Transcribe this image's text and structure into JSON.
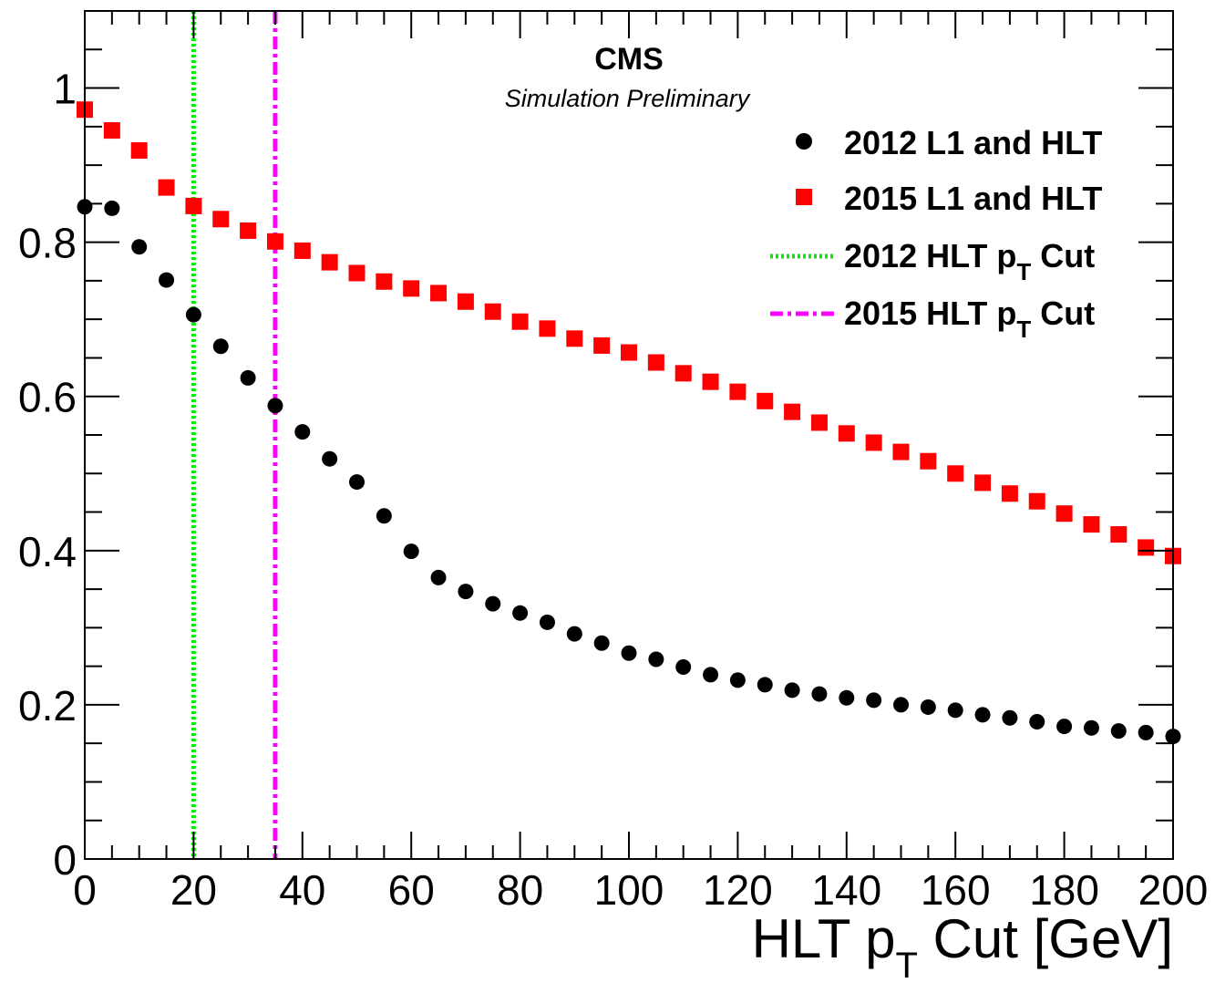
{
  "chart_data": {
    "type": "scatter",
    "title": "CMS",
    "subtitle": "Simulation Preliminary",
    "xlabel_main": "HLT p",
    "xlabel_sub": "T",
    "xlabel_tail": " Cut [GeV]",
    "ylabel": "",
    "xlim": [
      0,
      200
    ],
    "ylim": [
      0,
      1.1
    ],
    "x_ticks": [
      0,
      20,
      40,
      60,
      80,
      100,
      120,
      140,
      160,
      180,
      200
    ],
    "x_tick_labels": [
      "0",
      "20",
      "40",
      "60",
      "80",
      "100",
      "120",
      "140",
      "160",
      "180",
      "200"
    ],
    "y_ticks": [
      0,
      0.2,
      0.4,
      0.6,
      0.8,
      1
    ],
    "y_tick_labels": [
      "0",
      "0.2",
      "0.4",
      "0.6",
      "0.8",
      "1"
    ],
    "grid": false,
    "legend_position": "top-right",
    "x": [
      0,
      5,
      10,
      15,
      20,
      25,
      30,
      35,
      40,
      45,
      50,
      55,
      60,
      65,
      70,
      75,
      80,
      85,
      90,
      95,
      100,
      105,
      110,
      115,
      120,
      125,
      130,
      135,
      140,
      145,
      150,
      155,
      160,
      165,
      170,
      175,
      180,
      185,
      190,
      195,
      200
    ],
    "series": [
      {
        "name": "2012 L1 and HLT",
        "marker": "circle",
        "color": "#000000",
        "values": [
          0.846,
          0.844,
          0.794,
          0.751,
          0.706,
          0.665,
          0.624,
          0.588,
          0.554,
          0.519,
          0.489,
          0.445,
          0.399,
          0.365,
          0.347,
          0.331,
          0.319,
          0.307,
          0.292,
          0.28,
          0.267,
          0.259,
          0.249,
          0.239,
          0.232,
          0.226,
          0.219,
          0.214,
          0.209,
          0.206,
          0.2,
          0.197,
          0.193,
          0.187,
          0.183,
          0.178,
          0.172,
          0.17,
          0.166,
          0.164,
          0.159
        ]
      },
      {
        "name": "2015 L1 and HLT",
        "marker": "square",
        "color": "#ff0000",
        "values": [
          0.972,
          0.945,
          0.919,
          0.871,
          0.847,
          0.83,
          0.815,
          0.801,
          0.789,
          0.774,
          0.76,
          0.749,
          0.74,
          0.734,
          0.723,
          0.71,
          0.697,
          0.688,
          0.675,
          0.666,
          0.657,
          0.644,
          0.63,
          0.619,
          0.606,
          0.594,
          0.58,
          0.566,
          0.552,
          0.54,
          0.528,
          0.516,
          0.5,
          0.488,
          0.474,
          0.464,
          0.448,
          0.434,
          0.421,
          0.404,
          0.393
        ]
      }
    ],
    "cut_lines": [
      {
        "name_main": "2012 HLT p",
        "name_sub": "T",
        "name_tail": " Cut",
        "x": 20,
        "color": "#00ee00",
        "style": "dotted"
      },
      {
        "name_main": "2015 HLT p",
        "name_sub": "T",
        "name_tail": " Cut",
        "x": 35,
        "color": "#ff00ff",
        "style": "dash-dot"
      }
    ]
  }
}
